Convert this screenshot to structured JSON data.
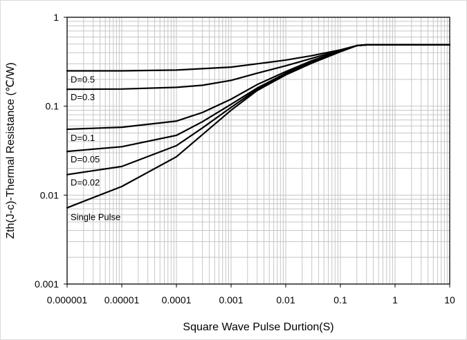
{
  "chart_data": {
    "type": "line",
    "xscale": "log",
    "yscale": "log",
    "xlim": [
      1e-06,
      10
    ],
    "ylim": [
      0.001,
      1
    ],
    "grid": true,
    "xlabel": "Square Wave Pulse Durtion(S)",
    "ylabel": "Zth(J-c)-Thermal Resistance (℃/W)",
    "x_tick_labels": [
      "0.000001",
      "0.00001",
      "0.0001",
      "0.001",
      "0.01",
      "0.1",
      "1",
      "10"
    ],
    "y_tick_labels": [
      "0.001",
      "0.01",
      "0.1",
      "1"
    ],
    "series": [
      {
        "name": "D=0.5",
        "x": [
          1e-06,
          1e-05,
          0.0001,
          0.001,
          0.003,
          0.01,
          0.03,
          0.1,
          0.2,
          0.3,
          1,
          10
        ],
        "y": [
          0.25,
          0.25,
          0.255,
          0.275,
          0.3,
          0.33,
          0.37,
          0.43,
          0.48,
          0.49,
          0.49,
          0.49
        ]
      },
      {
        "name": "D=0.3",
        "x": [
          1e-06,
          1e-05,
          0.0001,
          0.0003,
          0.001,
          0.003,
          0.01,
          0.03,
          0.1,
          0.2,
          0.3,
          1,
          10
        ],
        "y": [
          0.155,
          0.156,
          0.163,
          0.172,
          0.195,
          0.235,
          0.285,
          0.345,
          0.425,
          0.48,
          0.49,
          0.49,
          0.49
        ]
      },
      {
        "name": "D=0.1",
        "x": [
          1e-06,
          1e-05,
          0.0001,
          0.0003,
          0.001,
          0.003,
          0.01,
          0.03,
          0.1,
          0.2,
          0.3,
          1,
          10
        ],
        "y": [
          0.055,
          0.058,
          0.068,
          0.085,
          0.12,
          0.175,
          0.245,
          0.325,
          0.42,
          0.48,
          0.49,
          0.49,
          0.49
        ]
      },
      {
        "name": "D=0.05",
        "x": [
          1e-06,
          1e-05,
          0.0001,
          0.0003,
          0.001,
          0.003,
          0.01,
          0.03,
          0.1,
          0.2,
          0.3,
          1,
          10
        ],
        "y": [
          0.031,
          0.035,
          0.047,
          0.067,
          0.105,
          0.16,
          0.235,
          0.315,
          0.415,
          0.48,
          0.49,
          0.49,
          0.49
        ]
      },
      {
        "name": "D=0.02",
        "x": [
          1e-06,
          1e-05,
          0.0001,
          0.0003,
          0.001,
          0.003,
          0.01,
          0.03,
          0.1,
          0.2,
          0.3,
          1,
          10
        ],
        "y": [
          0.017,
          0.021,
          0.036,
          0.057,
          0.097,
          0.155,
          0.23,
          0.31,
          0.415,
          0.48,
          0.49,
          0.49,
          0.49
        ]
      },
      {
        "name": "Single Pulse",
        "x": [
          1e-06,
          1e-05,
          0.0001,
          0.0003,
          0.001,
          0.003,
          0.01,
          0.03,
          0.1,
          0.2,
          0.3,
          1,
          10
        ],
        "y": [
          0.0072,
          0.0125,
          0.027,
          0.048,
          0.09,
          0.15,
          0.225,
          0.305,
          0.41,
          0.48,
          0.49,
          0.49,
          0.49
        ]
      }
    ],
    "curve_labels": [
      "D=0.5",
      "D=0.3",
      "D=0.1",
      "D=0.05",
      "D=0.02",
      "Single Pulse"
    ]
  }
}
